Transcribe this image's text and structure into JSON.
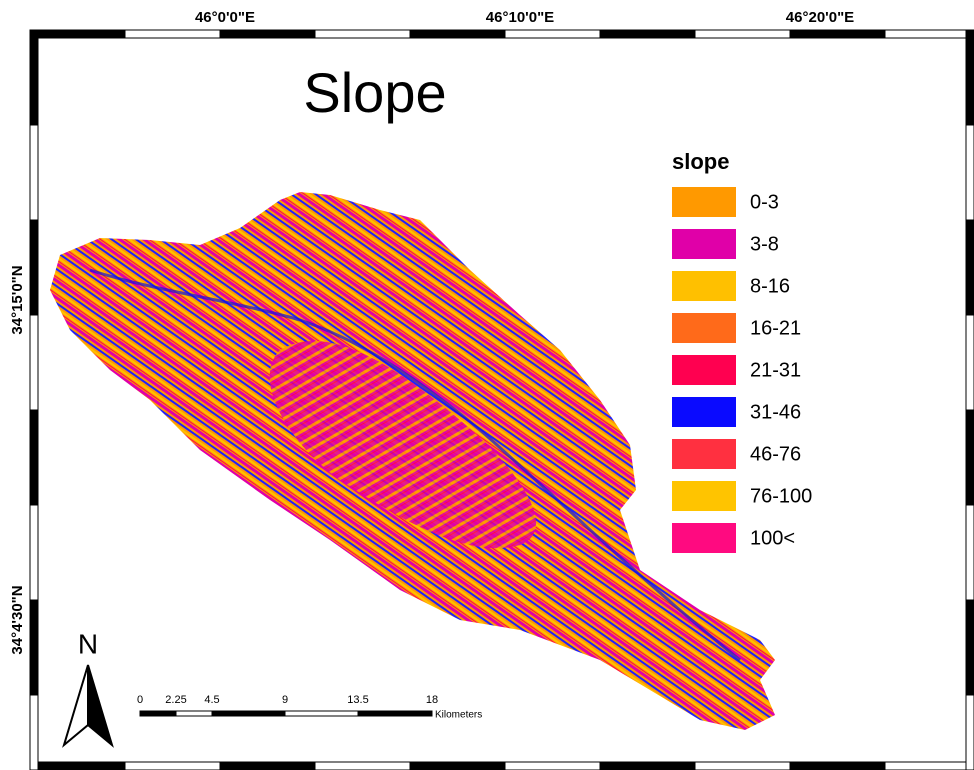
{
  "map": {
    "title": "Slope",
    "longitude_labels": [
      "46°0'0\"E",
      "46°10'0\"E",
      "46°20'0\"E"
    ],
    "latitude_labels": [
      "34°15'0\"N",
      "34°4'30\"N"
    ],
    "legend": {
      "title": "slope",
      "items": [
        {
          "label": "0-3",
          "color": "#ff9900"
        },
        {
          "label": "3-8",
          "color": "#e000a8"
        },
        {
          "label": "8-16",
          "color": "#ffc000"
        },
        {
          "label": "16-21",
          "color": "#ff6a1a"
        },
        {
          "label": "21-31",
          "color": "#ff0050"
        },
        {
          "label": "31-46",
          "color": "#0a0aff"
        },
        {
          "label": "46-76",
          "color": "#ff3040"
        },
        {
          "label": "76-100",
          "color": "#ffc400"
        },
        {
          "label": "100<",
          "color": "#ff0a80"
        }
      ]
    },
    "north_arrow": "N",
    "scale_bar": {
      "labels": [
        "0",
        "2.25",
        "4.5",
        "9",
        "13.5",
        "18"
      ],
      "unit": "Kilometers"
    }
  }
}
